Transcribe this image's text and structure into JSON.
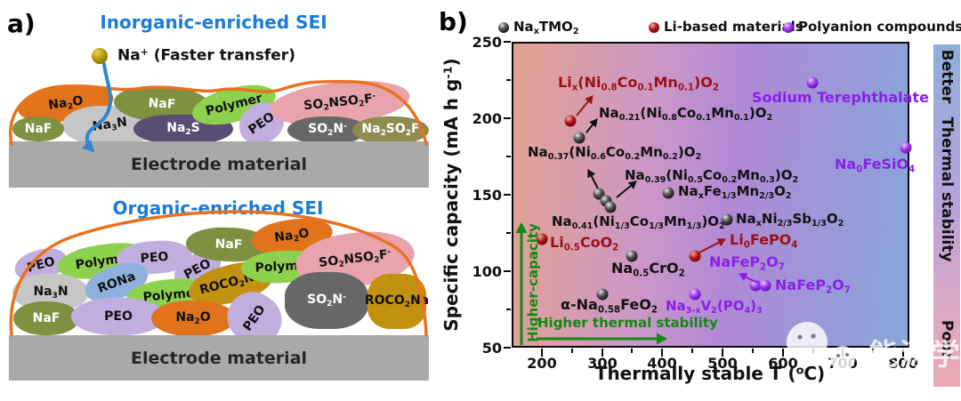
{
  "colors": {
    "title_blue": "#1b7cd8",
    "outline_orange": "#e8721e",
    "arrow_blue": "#2e86d0",
    "na2o": "#e0731c",
    "naf": "#7d9140",
    "na3n": "#c6c6c6",
    "na2s": "#5a4d74",
    "polymer": "#8ed14e",
    "peo": "#c2aede",
    "so2nso2f": "#e8a3ac",
    "so2n": "#676767",
    "na2so2f": "#8f8a4e",
    "rona": "#8fb0dc",
    "roco2na": "#c39110",
    "electrode": "#a9a9a9",
    "series_black": "#1a1a1a",
    "series_red": "#9b1111",
    "series_purple": "#8a1fe8",
    "annotation_green": "#118a11"
  },
  "panel_a": {
    "panel_label": "a)",
    "inorganic": {
      "title": "Inorganic-enriched SEI",
      "ion_label_html": "Na<sup>+</sup> (Faster transfer)",
      "electrode_label": "Electrode material",
      "blobs": {
        "na2o": "Na<sub>2</sub>O",
        "naf_left": "NaF",
        "na3n": "Na<sub>3</sub>N",
        "naf_top": "NaF",
        "na2s": "Na<sub>2</sub>S",
        "polymer": "Polymer",
        "peo": "PEO",
        "so2nso2f": "SO<sub>2</sub>NSO<sub>2</sub>F<sup>-</sup>",
        "so2n": "SO<sub>2</sub>N<sup>-</sup>",
        "na2so2f": "Na<sub>2</sub>SO<sub>2</sub>F"
      }
    },
    "organic": {
      "title": "Organic-enriched SEI",
      "electrode_label": "Electrode material",
      "blobs": {
        "peo1": "PEO",
        "polymer1": "Polymer",
        "peo2": "PEO",
        "peo3": "PEO",
        "naf_top": "NaF",
        "na2o_top": "Na<sub>2</sub>O",
        "na3n": "Na<sub>3</sub>N",
        "rona": "RONa",
        "polymer2": "Polymer",
        "roco2na_mid": "ROCO<sub>2</sub>Na",
        "polymer3": "Polymer",
        "so2nso2f": "SO<sub>2</sub>NSO<sub>2</sub>F<sup>-</sup>",
        "naf_bottom": "NaF",
        "peo4": "PEO",
        "na2o_bottom": "Na<sub>2</sub>O",
        "peo5": "PEO",
        "so2n": "SO<sub>2</sub>N<sup>-</sup>",
        "roco2na_right": "ROCO<sub>2</sub>Na"
      }
    }
  },
  "panel_b": {
    "panel_label": "b)",
    "legend": [
      {
        "label_html": "Na<sub>x</sub>TMO<sub>2</sub>"
      },
      {
        "label_html": "Li-based materials"
      },
      {
        "label_html": "Polyanion compounds"
      }
    ],
    "axes": {
      "x_label_html": "Thermally stable T (<sup>o</sup>C)",
      "y_label_html": "Specific capacity (mA h g<sup>-1</sup>)",
      "x_ticks": [
        "200",
        "300",
        "400",
        "500",
        "600",
        "700",
        "800"
      ],
      "y_ticks": [
        "250",
        "200",
        "150",
        "100",
        "50"
      ]
    },
    "labels": {
      "lix_ncm811": "Li<sub>x</sub>(Ni<sub>0.8</sub>Co<sub>0.1</sub>Mn<sub>0.1</sub>)O<sub>2</sub>",
      "na021_ncm811": "Na<sub>0.21</sub>(Ni<sub>0.8</sub>Co<sub>0.1</sub>Mn<sub>0.1</sub>)O<sub>2</sub>",
      "na037_ncm622": "Na<sub>0.37</sub>(Ni<sub>0.6</sub>Co<sub>0.2</sub>Mn<sub>0.2</sub>)O<sub>2</sub>",
      "na039_ncm523": "Na<sub>0.39</sub>(Ni<sub>0.5</sub>Co<sub>0.2</sub>Mn<sub>0.3</sub>)O<sub>2</sub>",
      "na041_ncm111": "Na<sub>0.41</sub>(Ni<sub>1/3</sub>Co<sub>1/3</sub>Mn<sub>1/3</sub>)O<sub>2</sub>",
      "naxfe_mn": "Na<sub>x</sub>Fe<sub>1/3</sub>Mn<sub>2/3</sub>O<sub>2</sub>",
      "naxni_sb": "Na<sub>x</sub>Ni<sub>2/3</sub>Sb<sub>1/3</sub>O<sub>2</sub>",
      "li05coo2": "Li<sub>0.5</sub>CoO<sub>2</sub>",
      "na05cro2": "Na<sub>0.5</sub>CrO<sub>2</sub>",
      "li0fepo4": "Li<sub>0</sub>FePO<sub>4</sub>",
      "nafep2o7_a": "NaFeP<sub>2</sub>O<sub>7</sub>",
      "nafep2o7_b": "NaFeP<sub>2</sub>O<sub>7</sub>",
      "alpha_na058feo2": "α-Na<sub>0.58</sub>FeO<sub>2</sub>",
      "na3xv2po43": "Na<sub>3-x</sub>V<sub>2</sub>(PO<sub>4</sub>)<sub>3</sub>",
      "sodium_terephthalate": "Sodium Terephthalate",
      "na0fesio4": "Na<sub>0</sub>FeSiO<sub>4</sub>"
    },
    "annotations": {
      "higher_capacity": "Higher-capacity",
      "higher_thermal_stability": "Higher thermal stability"
    },
    "stability_bar": {
      "top": "Better",
      "middle": "Thermal stability",
      "bottom": "Poor"
    },
    "watermark_text": "能源学人"
  },
  "chart_data": {
    "type": "scatter",
    "title": "",
    "xlabel": "Thermally stable T (°C)",
    "ylabel": "Specific capacity (mA h g⁻¹)",
    "xlim": [
      150,
      810
    ],
    "ylim": [
      50,
      250
    ],
    "x_ticks": [
      200,
      300,
      400,
      500,
      600,
      700,
      800
    ],
    "y_ticks": [
      50,
      100,
      150,
      200,
      250
    ],
    "grid": false,
    "legend_position": "top",
    "background_gradient": [
      "#e3a28f",
      "#b189d6",
      "#87a6d8"
    ],
    "series": [
      {
        "name": "NaxTMO2",
        "color": "#1a1a1a",
        "points": [
          {
            "label": "Na0.21(Ni0.8Co0.1Mn0.1)O2",
            "x": 260,
            "y": 187
          },
          {
            "label": "Na0.37(Ni0.6Co0.2Mn0.2)O2",
            "x": 295,
            "y": 151
          },
          {
            "label": "Na0.39(Ni0.5Co0.2Mn0.3)O2",
            "x": 305,
            "y": 146
          },
          {
            "label": "Na0.41(Ni1/3Co1/3Mn1/3)O2",
            "x": 310,
            "y": 142
          },
          {
            "label": "NaxFe1/3Mn2/3O2",
            "x": 410,
            "y": 151
          },
          {
            "label": "NaxNi2/3Sb1/3O2",
            "x": 505,
            "y": 134
          },
          {
            "label": "Na0.5CrO2",
            "x": 350,
            "y": 110
          },
          {
            "label": "α-Na0.58FeO2",
            "x": 300,
            "y": 84
          }
        ]
      },
      {
        "name": "Li-based materials",
        "color": "#9b1111",
        "points": [
          {
            "label": "Lix(Ni0.8Co0.1Mn0.1)O2",
            "x": 245,
            "y": 198
          },
          {
            "label": "Li0.5CoO2",
            "x": 200,
            "y": 121
          },
          {
            "label": "Li0FePO4",
            "x": 455,
            "y": 110
          }
        ]
      },
      {
        "name": "Polyanion compounds",
        "color": "#8a1fe8",
        "points": [
          {
            "label": "Sodium Terephthalate",
            "x": 650,
            "y": 223
          },
          {
            "label": "Na0FeSiO4",
            "x": 805,
            "y": 181
          },
          {
            "label": "NaFeP2O7",
            "x": 555,
            "y": 90
          },
          {
            "label": "NaFeP2O7",
            "x": 570,
            "y": 90
          },
          {
            "label": "Na3-xV2(PO4)3",
            "x": 455,
            "y": 85
          }
        ]
      }
    ],
    "annotations": [
      "Higher-capacity",
      "Higher thermal stability",
      "Better",
      "Thermal stability",
      "Poor"
    ]
  }
}
